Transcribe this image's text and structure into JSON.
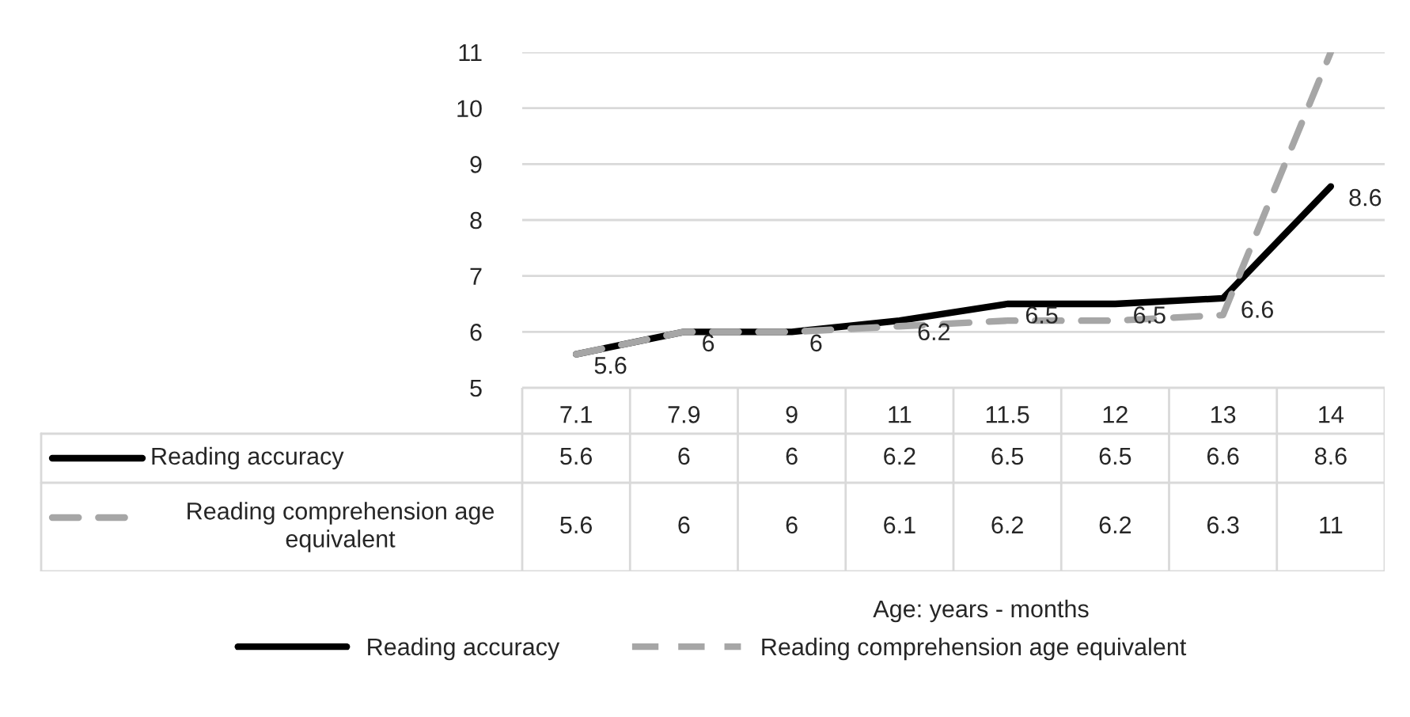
{
  "chart_data": {
    "type": "line",
    "annotations": [
      "Age: years - months",
      {
        "text": "5.6",
        "x": "7.1",
        "y": 5.6
      },
      {
        "text": "6",
        "x": "7.9",
        "y": 6
      },
      {
        "text": "6",
        "x": "9",
        "y": 6
      },
      {
        "text": "6.2",
        "x": "11",
        "y": 6.2
      },
      {
        "text": "6.5",
        "x": "11.5",
        "y": 6.5
      },
      {
        "text": "6.5",
        "x": "12",
        "y": 6.5
      },
      {
        "text": "6.6",
        "x": "13",
        "y": 6.6
      },
      {
        "text": "8.6",
        "x": "14",
        "y": 8.6
      }
    ],
    "categories": [
      "7.1",
      "7.9",
      "9",
      "11",
      "11.5",
      "12",
      "13",
      "14"
    ],
    "series": [
      {
        "name": "Reading accuracy",
        "color": "#000000",
        "line_style": "solid",
        "values": [
          5.6,
          6,
          6,
          6.2,
          6.5,
          6.5,
          6.6,
          8.6
        ]
      },
      {
        "name": "Reading comprehension age equivalent",
        "color": "#a6a6a6",
        "line_style": "dashed",
        "values": [
          5.6,
          6,
          6,
          6.1,
          6.2,
          6.2,
          6.3,
          11
        ]
      }
    ],
    "ylim": [
      5,
      11
    ],
    "yticks": [
      5,
      6,
      7,
      8,
      9,
      10,
      11
    ],
    "grid": "y",
    "legend": "bottom",
    "data_labels": true,
    "marker": "none"
  }
}
